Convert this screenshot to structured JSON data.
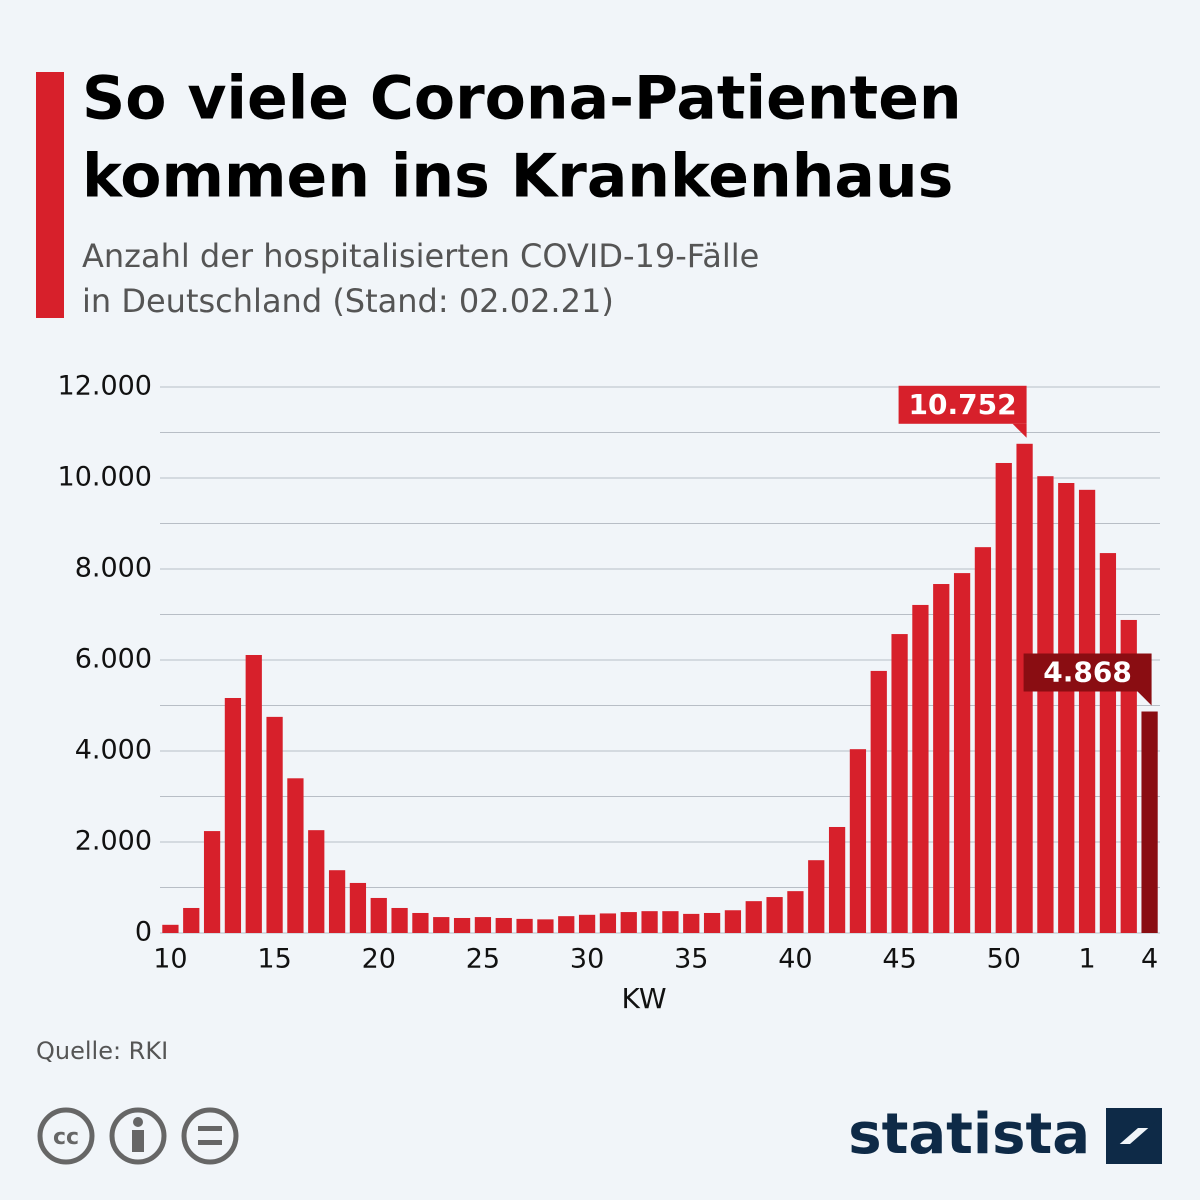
{
  "chart_data": {
    "type": "bar",
    "title": [
      "So viele Corona-Patienten",
      "kommen ins Krankenhaus"
    ],
    "subtitle": [
      "Anzahl der hospitalisierten COVID-19-Fälle",
      "in Deutschland (Stand: 02.02.21)"
    ],
    "x_label": "KW",
    "source": "Quelle: RKI",
    "brand": "statista",
    "categories": [
      "10",
      null,
      null,
      null,
      null,
      "15",
      null,
      null,
      null,
      null,
      "20",
      null,
      null,
      null,
      null,
      "25",
      null,
      null,
      null,
      null,
      "30",
      null,
      null,
      null,
      null,
      "35",
      null,
      null,
      null,
      null,
      "40",
      null,
      null,
      null,
      null,
      "45",
      null,
      null,
      null,
      null,
      "50",
      null,
      null,
      null,
      "1",
      null,
      null,
      "4"
    ],
    "values": [
      180,
      550,
      2240,
      5165,
      6110,
      4750,
      3400,
      2260,
      1380,
      1100,
      770,
      550,
      440,
      350,
      330,
      350,
      330,
      310,
      300,
      370,
      400,
      430,
      460,
      480,
      480,
      420,
      440,
      500,
      700,
      790,
      920,
      1600,
      2330,
      4040,
      5760,
      6570,
      7210,
      7670,
      7910,
      8480,
      10330,
      10752,
      10040,
      9890,
      9740,
      8350,
      6880,
      4868
    ],
    "value_labels": [
      null,
      null,
      null,
      null,
      null,
      null,
      null,
      null,
      null,
      null,
      null,
      null,
      null,
      null,
      null,
      null,
      null,
      null,
      null,
      null,
      null,
      null,
      null,
      null,
      null,
      null,
      null,
      null,
      null,
      null,
      null,
      null,
      null,
      null,
      null,
      null,
      null,
      null,
      null,
      null,
      null,
      "10.752",
      null,
      null,
      null,
      null,
      null,
      "4.868"
    ],
    "bar_colors": [
      "#d7202b",
      "#d7202b",
      "#d7202b",
      "#d7202b",
      "#d7202b",
      "#d7202b",
      "#d7202b",
      "#d7202b",
      "#d7202b",
      "#d7202b",
      "#d7202b",
      "#d7202b",
      "#d7202b",
      "#d7202b",
      "#d7202b",
      "#d7202b",
      "#d7202b",
      "#d7202b",
      "#d7202b",
      "#d7202b",
      "#d7202b",
      "#d7202b",
      "#d7202b",
      "#d7202b",
      "#d7202b",
      "#d7202b",
      "#d7202b",
      "#d7202b",
      "#d7202b",
      "#d7202b",
      "#d7202b",
      "#d7202b",
      "#d7202b",
      "#d7202b",
      "#d7202b",
      "#d7202b",
      "#d7202b",
      "#d7202b",
      "#d7202b",
      "#d7202b",
      "#d7202b",
      "#d7202b",
      "#d7202b",
      "#d7202b",
      "#d7202b",
      "#d7202b",
      "#d7202b",
      "#8a0d12"
    ],
    "ylim": [
      0,
      12000
    ],
    "yticks": [
      0,
      {
        "value": 2000,
        "label": "2.000"
      },
      {
        "value": 4000,
        "label": "4.000"
      },
      {
        "value": 6000,
        "label": "6.000"
      },
      {
        "value": 8000,
        "label": "8.000"
      },
      {
        "value": 10000,
        "label": "10.000"
      },
      {
        "value": 12000,
        "label": "12.000"
      }
    ],
    "minor_yticks": [
      1000,
      3000,
      5000,
      7000,
      9000,
      11000
    ],
    "grid": true
  }
}
